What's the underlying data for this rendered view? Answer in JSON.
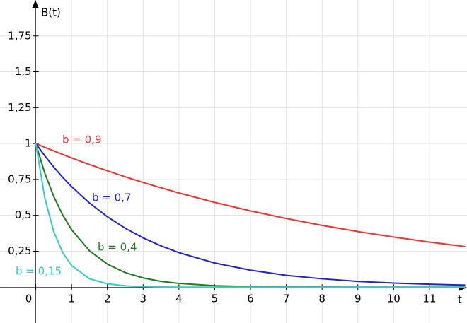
{
  "chart_data": {
    "type": "line",
    "ylabel": "B(t)",
    "xlabel": "t",
    "x": [
      0,
      0.25,
      0.5,
      0.75,
      1,
      1.5,
      2,
      2.5,
      3,
      3.5,
      4,
      5,
      6,
      7,
      8,
      9,
      10,
      11,
      12
    ],
    "series": [
      {
        "name": "b = 0,9",
        "color": "#ee3333",
        "values": [
          1,
          0.974,
          0.949,
          0.924,
          0.9,
          0.854,
          0.81,
          0.768,
          0.729,
          0.692,
          0.656,
          0.59,
          0.531,
          0.478,
          0.43,
          0.387,
          0.349,
          0.314,
          0.282
        ]
      },
      {
        "name": "b = 0,7",
        "color": "#2222cc",
        "values": [
          1,
          0.915,
          0.837,
          0.765,
          0.7,
          0.586,
          0.49,
          0.41,
          0.343,
          0.287,
          0.24,
          0.168,
          0.118,
          0.082,
          0.058,
          0.04,
          0.028,
          0.02,
          0.014
        ]
      },
      {
        "name": "b = 0,4",
        "color": "#227722",
        "values": [
          1,
          0.795,
          0.632,
          0.503,
          0.4,
          0.253,
          0.16,
          0.101,
          0.064,
          0.04,
          0.026,
          0.01,
          0.004,
          0.002,
          0.001,
          0,
          0,
          0,
          0
        ]
      },
      {
        "name": "b = 0,15",
        "color": "#33cccc",
        "values": [
          1,
          0.622,
          0.387,
          0.241,
          0.15,
          0.058,
          0.023,
          0.009,
          0.003,
          0.001,
          0,
          0,
          0,
          0,
          0,
          0,
          0,
          0,
          0
        ]
      }
    ],
    "xlim": [
      -1,
      12.05
    ],
    "ylim": [
      -0.25,
      2
    ],
    "xticks": [
      0,
      1,
      2,
      3,
      4,
      5,
      6,
      7,
      8,
      9,
      10,
      11
    ],
    "yticks": [
      {
        "value": 0.25,
        "label": "0,25"
      },
      {
        "value": 0.5,
        "label": "0,5"
      },
      {
        "value": 0.75,
        "label": "0,75"
      },
      1,
      {
        "value": 1.25,
        "label": "1,25"
      },
      {
        "value": 1.5,
        "label": "1,5"
      },
      {
        "value": 1.75,
        "label": "1,75"
      }
    ],
    "grid": true
  }
}
